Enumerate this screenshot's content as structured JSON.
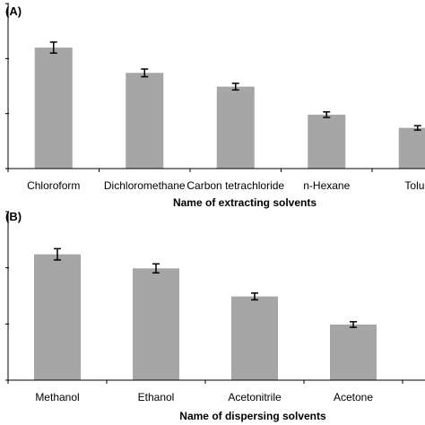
{
  "chart_data": [
    {
      "type": "bar",
      "panel_label": "(A)",
      "categories": [
        "Chloroform",
        "Dichloromethane",
        "Carbon tetrachloride",
        "n-Hexane",
        "Toluene"
      ],
      "category_labels_shown": [
        "Chloroform",
        "Dichloromethane",
        "Carbon tetrachloride",
        "n-Hexane",
        "Toluе"
      ],
      "values": [
        2.2,
        1.74,
        1.49,
        0.98,
        0.74
      ],
      "errors": [
        0.1,
        0.07,
        0.06,
        0.05,
        0.04
      ],
      "xlabel": "Name of extracting solvents",
      "ylabel": "",
      "ylim": [
        0,
        3
      ],
      "y_ticks": [
        0,
        1,
        2,
        3
      ],
      "tick_labels_visible": false,
      "grid": false,
      "bar_color": "#a6a6a6",
      "error_bar_color": "#000000"
    },
    {
      "type": "bar",
      "panel_label": "(B)",
      "categories": [
        "Methanol",
        "Ethanol",
        "Acetonitrile",
        "Acetone"
      ],
      "category_labels_shown": [
        "Methanol",
        "Ethanol",
        "Acetonitrile",
        "Acetone"
      ],
      "values": [
        2.24,
        1.99,
        1.49,
        0.99
      ],
      "errors": [
        0.1,
        0.08,
        0.06,
        0.05
      ],
      "xlabel": "Name of dispersing solvents",
      "ylabel": "",
      "ylim": [
        0,
        3
      ],
      "y_ticks": [
        0,
        1,
        2,
        3
      ],
      "tick_labels_visible": false,
      "grid": false,
      "bar_color": "#a6a6a6",
      "error_bar_color": "#000000"
    }
  ]
}
